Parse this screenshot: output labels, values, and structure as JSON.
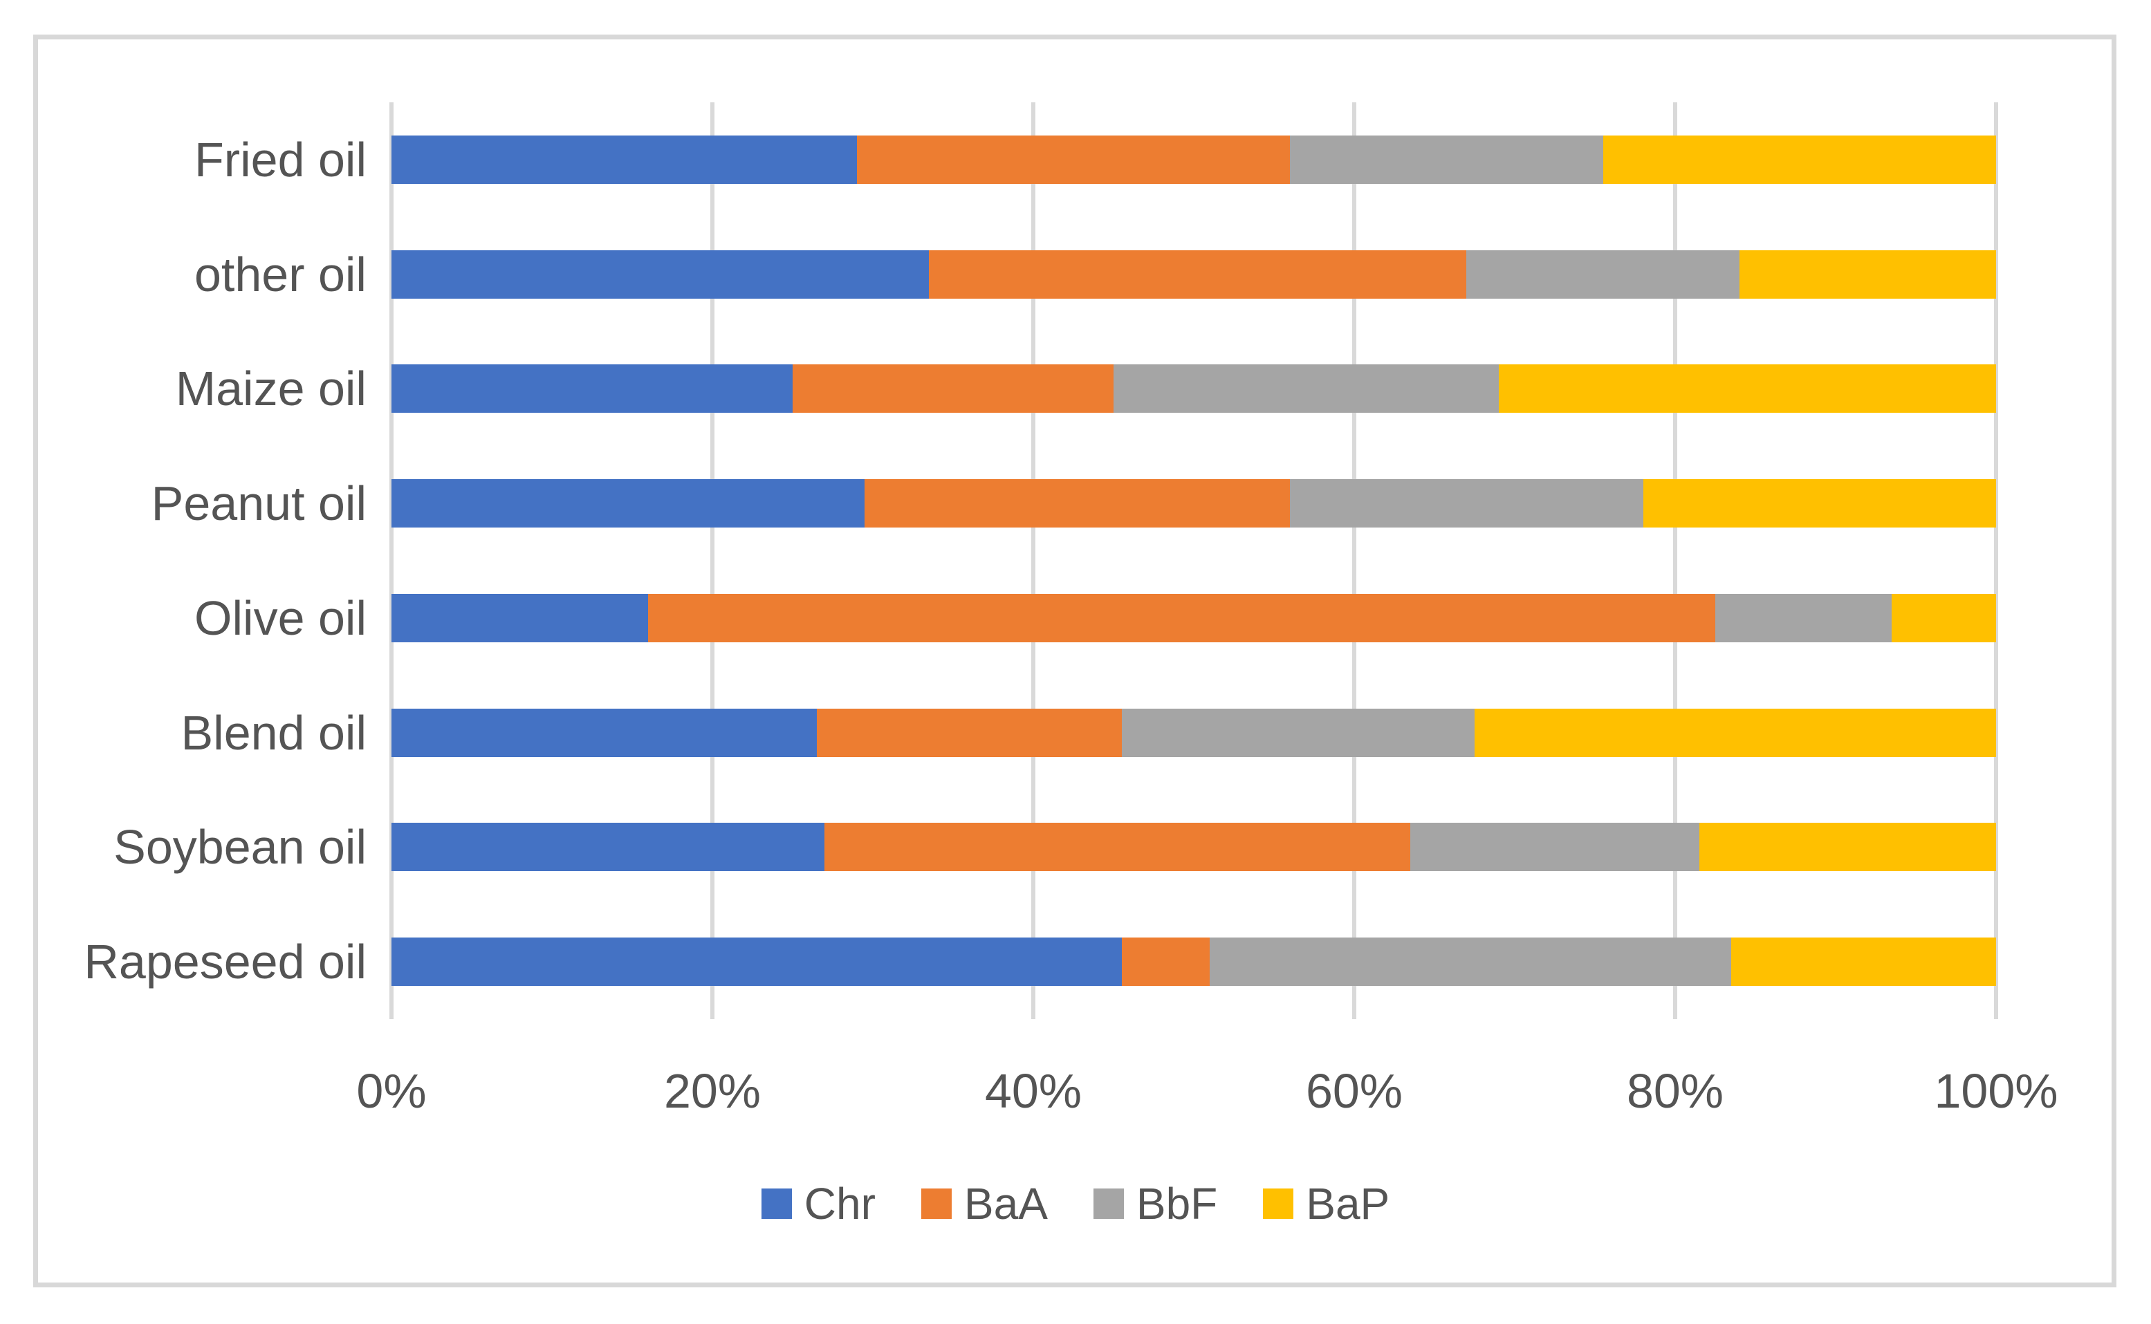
{
  "chart_data": {
    "type": "bar",
    "orientation": "horizontal",
    "stacked": true,
    "stacked_mode": "100%",
    "title": "",
    "xlabel": "",
    "ylabel": "",
    "grid": true,
    "categories": [
      "Fried oil",
      "other oil",
      "Maize oil",
      "Peanut oil",
      "Olive oil",
      "Blend oil",
      "Soybean oil",
      "Rapeseed oil"
    ],
    "series": [
      {
        "name": "Chr",
        "color": "#4472C4",
        "values": [
          29,
          33.5,
          25,
          29.5,
          16,
          26.5,
          27,
          45.5
        ]
      },
      {
        "name": "BaA",
        "color": "#ED7D31",
        "values": [
          27,
          33.5,
          20,
          26.5,
          66.5,
          19,
          36.5,
          5.5
        ]
      },
      {
        "name": "BbF",
        "color": "#A5A5A5",
        "values": [
          19.5,
          17,
          24,
          22,
          11,
          22,
          18,
          32.5
        ]
      },
      {
        "name": "BaP",
        "color": "#FFC000",
        "values": [
          24.5,
          16,
          31,
          22,
          6.5,
          32.5,
          18.5,
          16.5
        ]
      }
    ],
    "x_axis": {
      "min": 0,
      "max": 100,
      "unit": "%",
      "ticks": [
        "0%",
        "20%",
        "40%",
        "60%",
        "80%",
        "100%"
      ]
    },
    "legend": {
      "position": "bottom",
      "entries": [
        "Chr",
        "BaA",
        "BbF",
        "BaP"
      ]
    }
  },
  "colors": {
    "background": "#FFFFFF",
    "frame_border": "#D8D8D8",
    "gridline": "#D9D9D9",
    "text": "#545454",
    "series_chr": "#4472C4",
    "series_baa": "#ED7D31",
    "series_bbf": "#A5A5A5",
    "series_bap": "#FFC000"
  }
}
